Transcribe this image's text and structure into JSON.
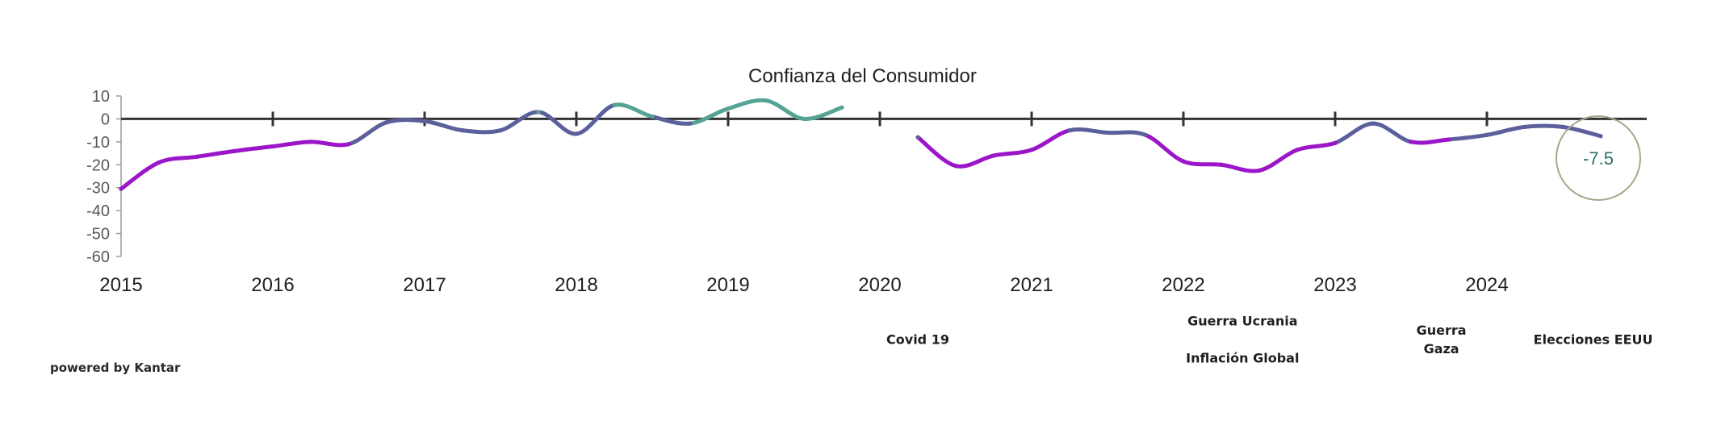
{
  "chart_data": {
    "type": "line",
    "title": "",
    "xlabel": "",
    "ylabel": "",
    "legend": {
      "placement": "top-center",
      "label": "Confianza del Consumidor"
    },
    "ylim": [
      -60,
      10
    ],
    "yticks": [
      "10",
      "0",
      "-10",
      "-20",
      "-30",
      "-40",
      "-50",
      "-60"
    ],
    "x_ticks": [
      "2015",
      "2016",
      "2017",
      "2018",
      "2019",
      "2020",
      "2021",
      "2022",
      "2023",
      "2024"
    ],
    "xlim": [
      2015,
      2025
    ],
    "grid": false,
    "series": [
      {
        "name": "Confianza del Consumidor",
        "segments": [
          [
            [
              2015.0,
              -30.5
            ],
            [
              2015.25,
              -19
            ],
            [
              2015.5,
              -16.5
            ],
            [
              2015.75,
              -14
            ],
            [
              2016.0,
              -12
            ],
            [
              2016.25,
              -10
            ],
            [
              2016.5,
              -11
            ],
            [
              2016.75,
              -1.5
            ],
            [
              2017.0,
              -1
            ],
            [
              2017.25,
              -5
            ],
            [
              2017.5,
              -5
            ],
            [
              2017.75,
              3
            ],
            [
              2018.0,
              -6.5
            ],
            [
              2018.25,
              6
            ],
            [
              2018.5,
              1
            ],
            [
              2018.75,
              -2
            ],
            [
              2019.0,
              4.5
            ],
            [
              2019.25,
              8
            ],
            [
              2019.5,
              0
            ],
            [
              2019.75,
              5
            ]
          ],
          [
            [
              2020.25,
              -8
            ],
            [
              2020.5,
              -20.5
            ],
            [
              2020.75,
              -16
            ],
            [
              2021.0,
              -13.5
            ],
            [
              2021.25,
              -5
            ],
            [
              2021.5,
              -6
            ],
            [
              2021.75,
              -7
            ],
            [
              2022.0,
              -18.5
            ],
            [
              2022.25,
              -20
            ],
            [
              2022.5,
              -22.5
            ],
            [
              2022.75,
              -13.5
            ],
            [
              2023.0,
              -10.5
            ],
            [
              2023.25,
              -2
            ],
            [
              2023.5,
              -10
            ],
            [
              2023.75,
              -9
            ],
            [
              2024.0,
              -7
            ],
            [
              2024.25,
              -3.5
            ],
            [
              2024.5,
              -3.5
            ],
            [
              2024.75,
              -7.5
            ]
          ]
        ]
      }
    ],
    "annotations": [
      {
        "x": 2024.75,
        "y": -7.5,
        "text": "-7.5"
      }
    ],
    "events": [
      {
        "lines": [
          "Covid 19"
        ],
        "x": 2020.25,
        "row": 3
      },
      {
        "lines": [
          "Guerra Ucrania"
        ],
        "x": 2022.39,
        "row": 1
      },
      {
        "lines": [
          "Inflación Global"
        ],
        "x": 2022.39,
        "row": 5
      },
      {
        "lines": [
          "Guerra",
          "Gaza"
        ],
        "x": 2023.7,
        "row": 2
      },
      {
        "lines": [
          "Elecciones EEUU"
        ],
        "x": 2024.7,
        "row": 3
      }
    ],
    "colors": {
      "purple": "#9b16c9",
      "slate": "#5b5f9b",
      "teal": "#55a394",
      "axis": "#333333"
    }
  },
  "footer": {
    "source": "powered by Kantar"
  }
}
